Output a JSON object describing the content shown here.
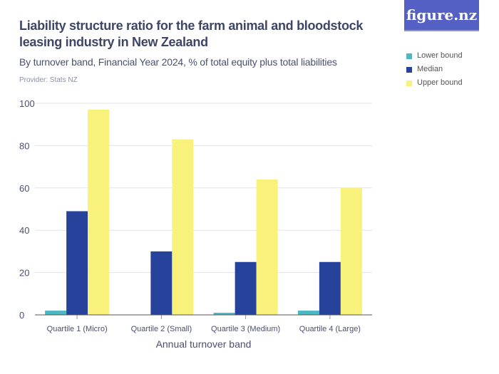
{
  "title": "Liability structure ratio for the farm animal and bloodstock leasing industry in New Zealand",
  "subtitle": "By turnover band, Financial Year 2024, % of total equity plus total liabilities",
  "provider": "Provider: Stats NZ",
  "logo": "figure.nz",
  "chart_data": {
    "type": "bar",
    "categories": [
      "Quartile 1 (Micro)",
      "Quartile 2 (Small)",
      "Quartile 3 (Medium)",
      "Quartile 4 (Large)"
    ],
    "series": [
      {
        "name": "Lower bound",
        "color": "#4bb8c4",
        "values": [
          2,
          null,
          1,
          2
        ]
      },
      {
        "name": "Median",
        "color": "#27429b",
        "values": [
          49,
          30,
          25,
          25
        ]
      },
      {
        "name": "Upper bound",
        "color": "#f8f17c",
        "values": [
          97,
          83,
          64,
          60
        ]
      }
    ],
    "xlabel": "Annual turnover band",
    "ylabel": "",
    "ylim": [
      0,
      100
    ],
    "yticks": [
      0,
      20,
      40,
      60,
      80,
      100
    ],
    "grid": true,
    "legend": "top-right"
  }
}
